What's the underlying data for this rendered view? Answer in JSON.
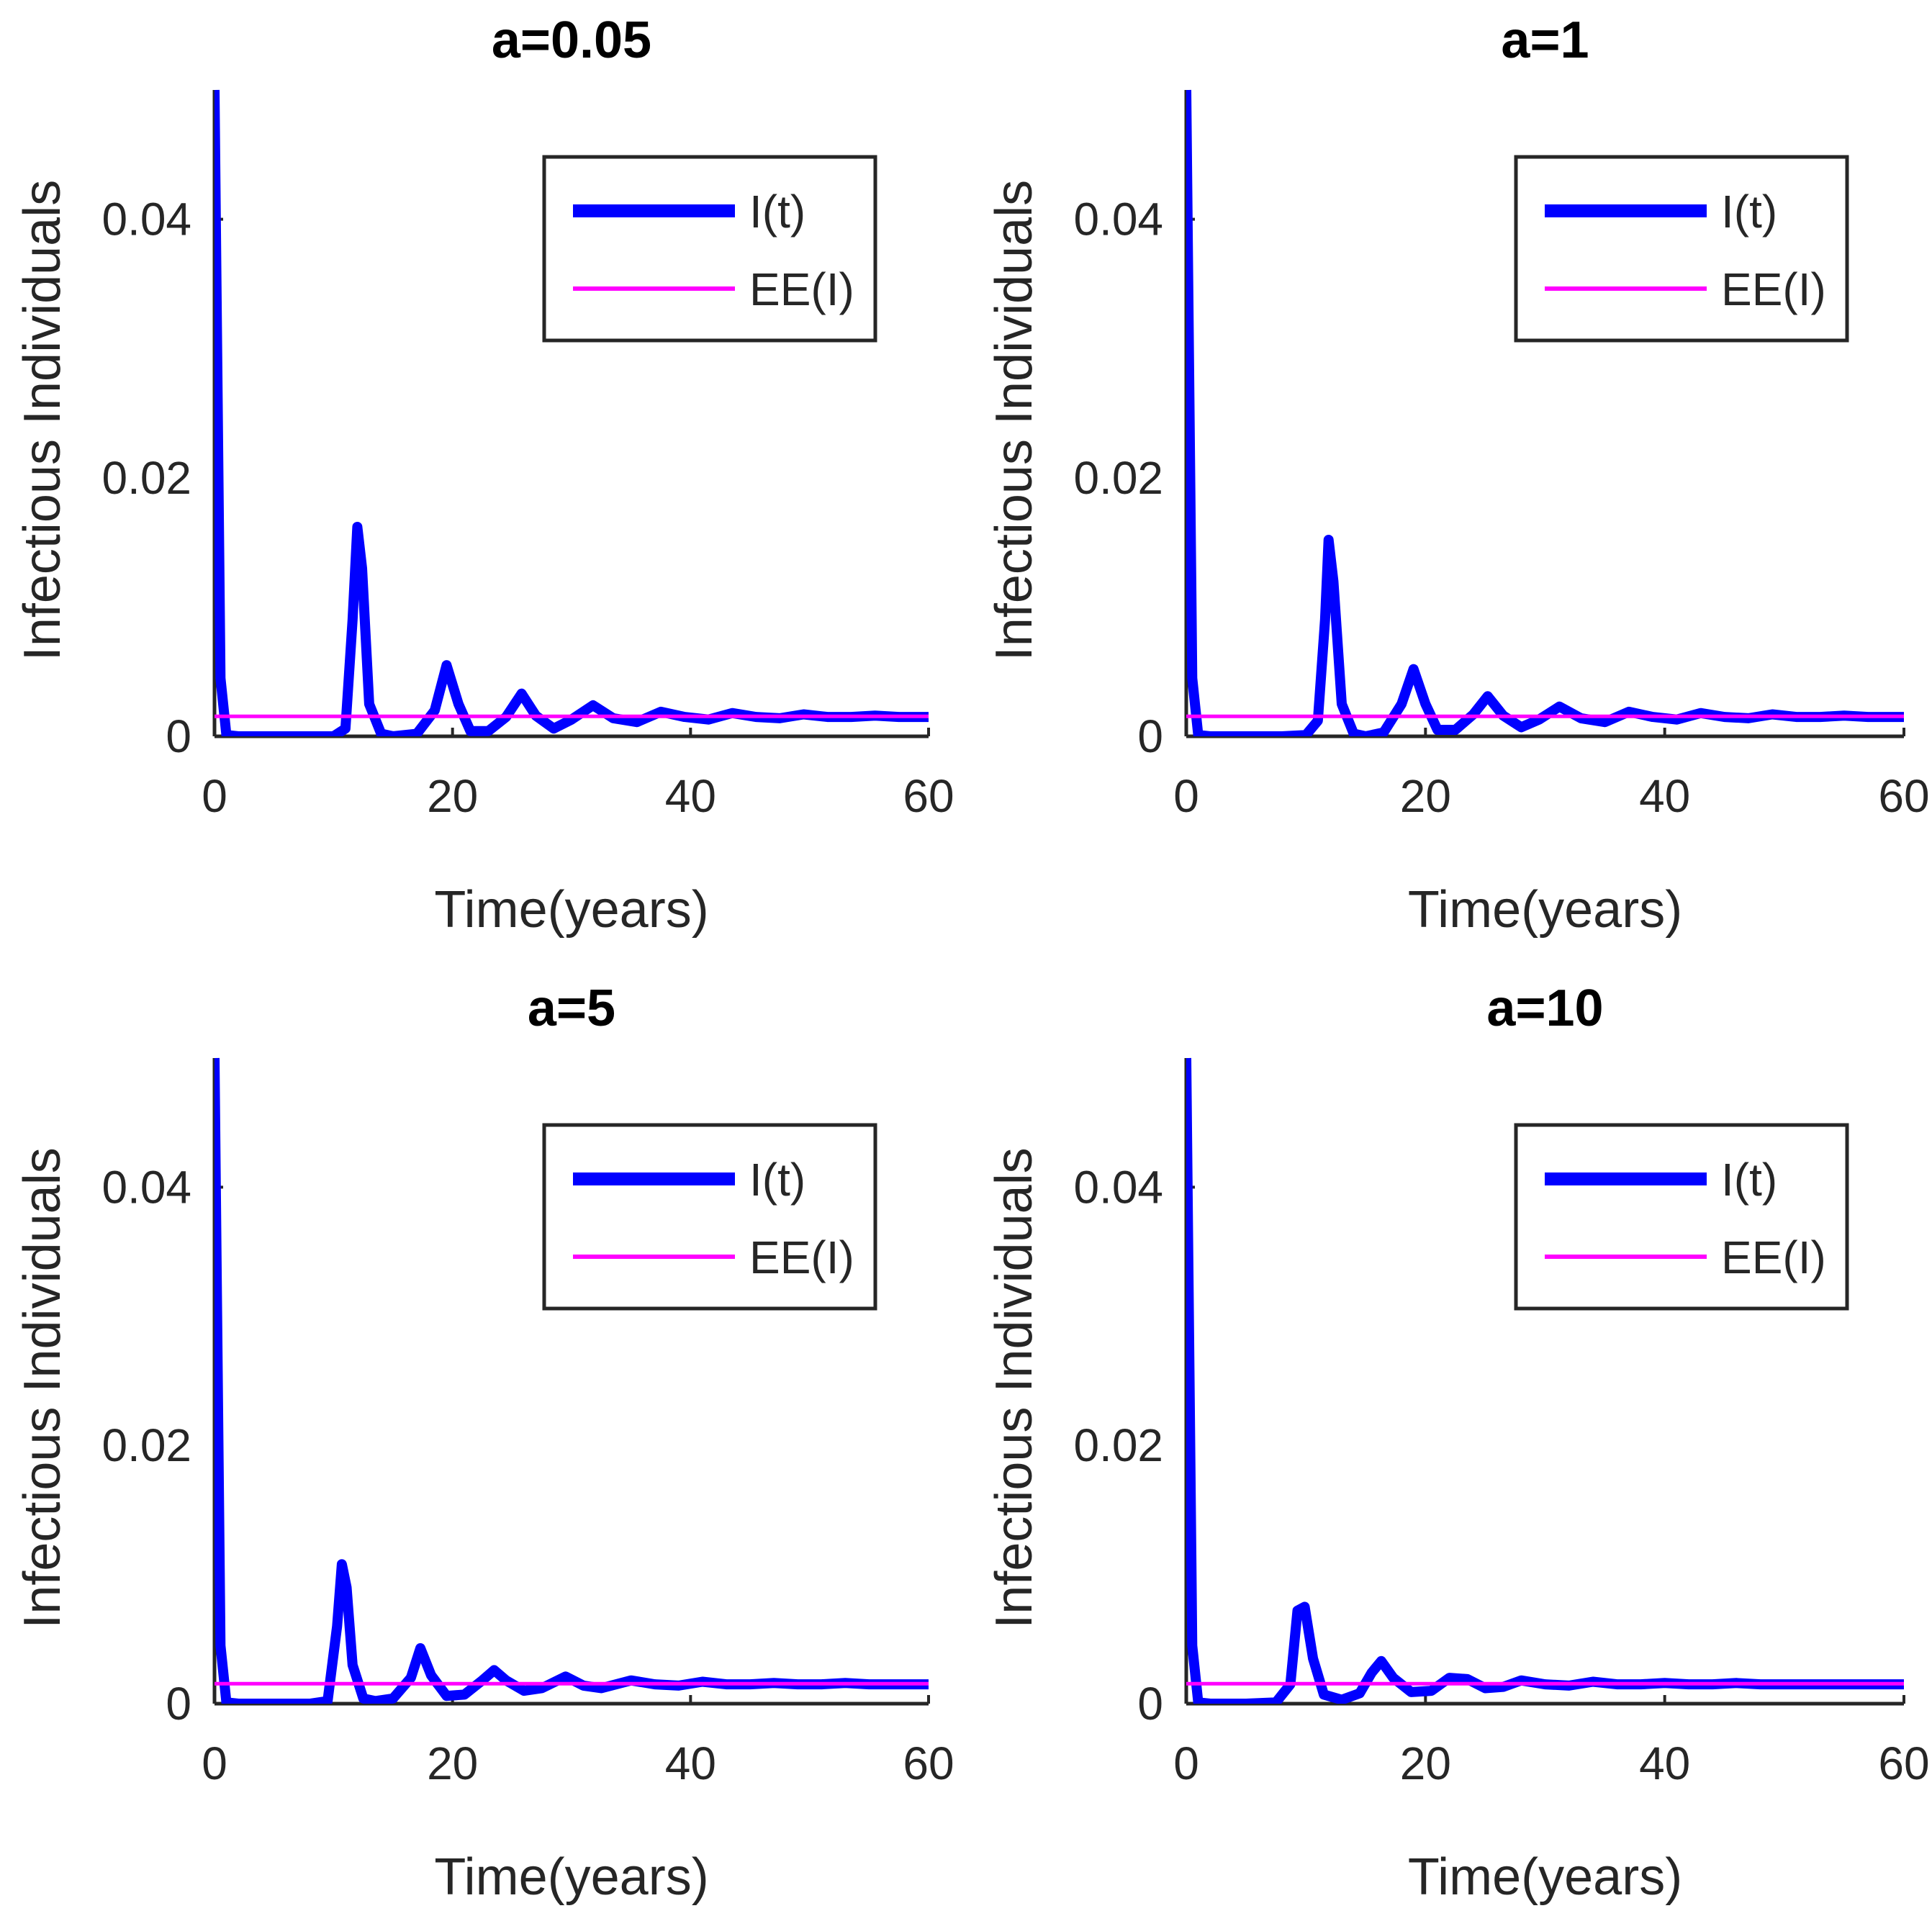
{
  "legend": {
    "series": [
      "I(t)",
      "EE(I)"
    ]
  },
  "colors": {
    "infected": "#0000FF",
    "equilibrium": "#FF00FF",
    "axes": "#262626"
  },
  "chart_data": [
    {
      "type": "line",
      "title": "a=0.05",
      "xlabel": "Time(years)",
      "ylabel": "Infectious Individuals",
      "xlim": [
        0,
        60
      ],
      "ylim": [
        0,
        0.05
      ],
      "xticks": [
        0,
        20,
        40,
        60
      ],
      "yticks": [
        0,
        0.02,
        0.04
      ],
      "ytick_labels": [
        "0",
        "0.02",
        "0.04"
      ],
      "legend_position": "top-right",
      "grid": false,
      "series": [
        {
          "name": "I(t)",
          "x": [
            0,
            0.5,
            1,
            2,
            5,
            8,
            10,
            11,
            11.6,
            12,
            12.4,
            13,
            14,
            15,
            17,
            18.5,
            19.5,
            20.5,
            21.5,
            23,
            24.5,
            25.8,
            27,
            28.5,
            30,
            31.8,
            33.5,
            35.5,
            37.5,
            39.5,
            41.5,
            43.5,
            45.5,
            47.5,
            49.5,
            51.5,
            53.5,
            55.5,
            57.5,
            60
          ],
          "y": [
            0.05,
            0.0045,
            0.0001,
            0,
            0,
            0,
            0,
            0.0006,
            0.009,
            0.0162,
            0.013,
            0.0025,
            0.0002,
            0,
            0.0002,
            0.002,
            0.0055,
            0.0025,
            0.0004,
            0.0004,
            0.0015,
            0.0033,
            0.0016,
            0.0006,
            0.0013,
            0.0024,
            0.0014,
            0.0011,
            0.0019,
            0.0015,
            0.0013,
            0.0018,
            0.0015,
            0.0014,
            0.0017,
            0.0015,
            0.0015,
            0.0016,
            0.0015,
            0.0015
          ]
        },
        {
          "name": "EE(I)",
          "x": [
            0,
            60
          ],
          "y": [
            0.00155,
            0.00155
          ]
        }
      ]
    },
    {
      "type": "line",
      "title": "a=1",
      "xlabel": "Time(years)",
      "ylabel": "Infectious Individuals",
      "xlim": [
        0,
        60
      ],
      "ylim": [
        0,
        0.05
      ],
      "xticks": [
        0,
        20,
        40,
        60
      ],
      "yticks": [
        0,
        0.02,
        0.04
      ],
      "ytick_labels": [
        "0",
        "0.02",
        "0.04"
      ],
      "legend_position": "top-right",
      "grid": false,
      "series": [
        {
          "name": "I(t)",
          "x": [
            0,
            0.5,
            1,
            2,
            5,
            8,
            10,
            11,
            11.6,
            11.9,
            12.3,
            13,
            14,
            15,
            16.5,
            18,
            19,
            20,
            21,
            22.5,
            24,
            25.2,
            26.5,
            28,
            29.5,
            31.2,
            33,
            35,
            37,
            39,
            41,
            43,
            45,
            47,
            49,
            51,
            53,
            55,
            57,
            60
          ],
          "y": [
            0.05,
            0.0045,
            0.0001,
            0,
            0,
            0,
            0.0001,
            0.0012,
            0.009,
            0.0152,
            0.012,
            0.0025,
            0.0002,
            0,
            0.0003,
            0.0025,
            0.0052,
            0.0025,
            0.0005,
            0.0005,
            0.0017,
            0.0031,
            0.0016,
            0.0007,
            0.0013,
            0.0023,
            0.0014,
            0.0011,
            0.0019,
            0.0015,
            0.0013,
            0.0018,
            0.0015,
            0.0014,
            0.0017,
            0.0015,
            0.0015,
            0.0016,
            0.0015,
            0.0015
          ]
        },
        {
          "name": "EE(I)",
          "x": [
            0,
            60
          ],
          "y": [
            0.00155,
            0.00155
          ]
        }
      ]
    },
    {
      "type": "line",
      "title": "a=5",
      "xlabel": "Time(years)",
      "ylabel": "Infectious Individuals",
      "xlim": [
        0,
        60
      ],
      "ylim": [
        0,
        0.05
      ],
      "xticks": [
        0,
        20,
        40,
        60
      ],
      "yticks": [
        0,
        0.02,
        0.04
      ],
      "ytick_labels": [
        "0",
        "0.02",
        "0.04"
      ],
      "legend_position": "top-right",
      "grid": false,
      "series": [
        {
          "name": "I(t)",
          "x": [
            0,
            0.5,
            1,
            2,
            5,
            8,
            9.5,
            10.3,
            10.7,
            11.1,
            11.6,
            12.5,
            13.5,
            15,
            16.5,
            17.3,
            18.2,
            19.5,
            21,
            22.5,
            23.5,
            24.5,
            26,
            27.5,
            29.5,
            31,
            32.5,
            35,
            37,
            39,
            41,
            43,
            45,
            47,
            49,
            51,
            53,
            55,
            57,
            60
          ],
          "y": [
            0.05,
            0.0045,
            0.0001,
            0,
            0,
            0,
            0.0002,
            0.006,
            0.0108,
            0.009,
            0.003,
            0.0004,
            0.0002,
            0.0004,
            0.002,
            0.0043,
            0.0022,
            0.0006,
            0.0007,
            0.0018,
            0.0026,
            0.0018,
            0.001,
            0.0012,
            0.0021,
            0.0014,
            0.0012,
            0.0018,
            0.0015,
            0.0014,
            0.0017,
            0.0015,
            0.0015,
            0.0016,
            0.0015,
            0.0015,
            0.0016,
            0.0015,
            0.0015,
            0.0015
          ]
        },
        {
          "name": "EE(I)",
          "x": [
            0,
            60
          ],
          "y": [
            0.00155,
            0.00155
          ]
        }
      ]
    },
    {
      "type": "line",
      "title": "a=10",
      "xlabel": "Time(years)",
      "ylabel": "Infectious Individuals",
      "xlim": [
        0,
        60
      ],
      "ylim": [
        0,
        0.05
      ],
      "xticks": [
        0,
        20,
        40,
        60
      ],
      "yticks": [
        0,
        0.02,
        0.04
      ],
      "ytick_labels": [
        "0",
        "0.02",
        "0.04"
      ],
      "legend_position": "top-right",
      "grid": false,
      "series": [
        {
          "name": "I(t)",
          "x": [
            0,
            0.5,
            1,
            2,
            5,
            7.5,
            8.7,
            9.3,
            9.9,
            10.6,
            11.5,
            13,
            14.5,
            15.5,
            16.3,
            17.3,
            18.8,
            20.5,
            22,
            23.5,
            25,
            26.5,
            28,
            30,
            32,
            34,
            36,
            38,
            40,
            42,
            44,
            46,
            48,
            50,
            52,
            54,
            56,
            58,
            60
          ],
          "y": [
            0.05,
            0.0045,
            0.0001,
            0,
            0,
            0.0001,
            0.0015,
            0.0072,
            0.0075,
            0.0035,
            0.0007,
            0.0003,
            0.0008,
            0.0024,
            0.0033,
            0.002,
            0.0009,
            0.001,
            0.002,
            0.0019,
            0.0012,
            0.0013,
            0.0018,
            0.0015,
            0.0014,
            0.0017,
            0.0015,
            0.0015,
            0.0016,
            0.0015,
            0.0015,
            0.0016,
            0.0015,
            0.0015,
            0.0015,
            0.0015,
            0.0015,
            0.0015,
            0.0015
          ]
        },
        {
          "name": "EE(I)",
          "x": [
            0,
            60
          ],
          "y": [
            0.00155,
            0.00155
          ]
        }
      ]
    }
  ]
}
